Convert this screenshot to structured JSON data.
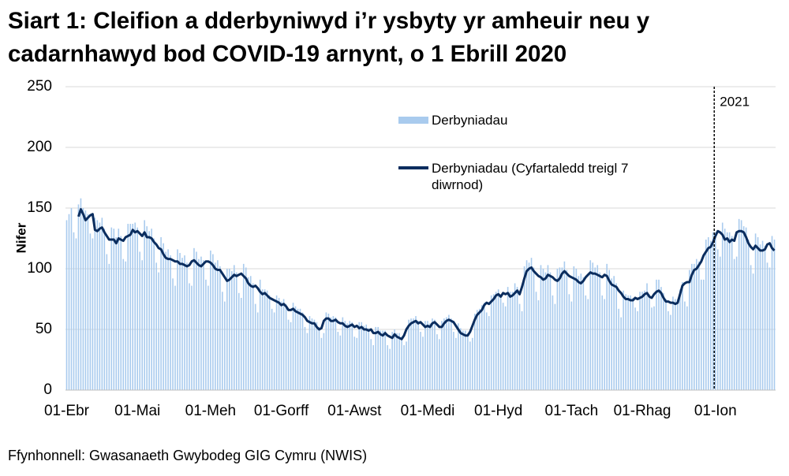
{
  "chart_data": {
    "type": "bar",
    "title": "Siart 1: Cleifion a dderbyniwyd i’r ysbyty yr amheuir neu y cadarnhawyd bod COVID-19 arnynt, o 1 Ebrill 2020",
    "y_label": "Nifer",
    "source": "Ffynhonnell: Gwasanaeth Gwybodeg GIG Cymru (NWIS)",
    "ylim": [
      0,
      250
    ],
    "yticks": [
      0,
      50,
      100,
      150,
      200,
      250
    ],
    "grid": true,
    "legend": "top",
    "annotation": {
      "text": "2021",
      "at": "01-Ion"
    },
    "categories": [
      "01-Ebr",
      null,
      null,
      null,
      null,
      null,
      null,
      null,
      null,
      null,
      null,
      null,
      null,
      null,
      null,
      null,
      null,
      null,
      null,
      null,
      null,
      null,
      null,
      null,
      null,
      null,
      null,
      null,
      null,
      null,
      "01-Mai",
      null,
      null,
      null,
      null,
      null,
      null,
      null,
      null,
      null,
      null,
      null,
      null,
      null,
      null,
      null,
      null,
      null,
      null,
      null,
      null,
      null,
      null,
      null,
      null,
      null,
      null,
      null,
      null,
      null,
      null,
      "01-Meh",
      null,
      null,
      null,
      null,
      null,
      null,
      null,
      null,
      null,
      null,
      null,
      null,
      null,
      null,
      null,
      null,
      null,
      null,
      null,
      null,
      null,
      null,
      null,
      null,
      null,
      null,
      null,
      null,
      null,
      "01-Gorff",
      null,
      null,
      null,
      null,
      null,
      null,
      null,
      null,
      null,
      null,
      null,
      null,
      null,
      null,
      null,
      null,
      null,
      null,
      null,
      null,
      null,
      null,
      null,
      null,
      null,
      null,
      null,
      null,
      null,
      null,
      "01-Awst",
      null,
      null,
      null,
      null,
      null,
      null,
      null,
      null,
      null,
      null,
      null,
      null,
      null,
      null,
      null,
      null,
      null,
      null,
      null,
      null,
      null,
      null,
      null,
      null,
      null,
      null,
      null,
      null,
      null,
      null,
      "01-Medi",
      null,
      null,
      null,
      null,
      null,
      null,
      null,
      null,
      null,
      null,
      null,
      null,
      null,
      null,
      null,
      null,
      null,
      null,
      null,
      null,
      null,
      null,
      null,
      null,
      null,
      null,
      null,
      null,
      null,
      "01-Hyd",
      null,
      null,
      null,
      null,
      null,
      null,
      null,
      null,
      null,
      null,
      null,
      null,
      null,
      null,
      null,
      null,
      null,
      null,
      null,
      null,
      null,
      null,
      null,
      null,
      null,
      null,
      null,
      null,
      null,
      null,
      "01-Tach",
      null,
      null,
      null,
      null,
      null,
      null,
      null,
      null,
      null,
      null,
      null,
      null,
      null,
      null,
      null,
      null,
      null,
      null,
      null,
      null,
      null,
      null,
      null,
      null,
      null,
      null,
      null,
      null,
      null,
      "01-Rhag",
      null,
      null,
      null,
      null,
      null,
      null,
      null,
      null,
      null,
      null,
      null,
      null,
      null,
      null,
      null,
      null,
      null,
      null,
      null,
      null,
      null,
      null,
      null,
      null,
      null,
      null,
      null,
      null,
      null,
      null,
      "01-Ion",
      null,
      null,
      null,
      null,
      null,
      null,
      null,
      null,
      null,
      null,
      null,
      null,
      null,
      null,
      null,
      null,
      null,
      null,
      null,
      null,
      null,
      null,
      null,
      null,
      null
    ],
    "series": [
      {
        "name": "Derbyniadau",
        "type": "bar",
        "color": "#a9cbee",
        "values": [
          140,
          145,
          150,
          130,
          125,
          153,
          158,
          150,
          148,
          145,
          129,
          125,
          142,
          140,
          138,
          142,
          133,
          112,
          104,
          134,
          133,
          126,
          133,
          127,
          108,
          106,
          137,
          137,
          137,
          138,
          134,
          114,
          107,
          140,
          135,
          131,
          133,
          125,
          105,
          97,
          126,
          121,
          114,
          116,
          111,
          92,
          86,
          116,
          113,
          109,
          111,
          105,
          88,
          86,
          117,
          114,
          108,
          110,
          107,
          91,
          86,
          115,
          112,
          105,
          107,
          102,
          81,
          73,
          100,
          100,
          98,
          103,
          97,
          80,
          76,
          104,
          101,
          93,
          94,
          88,
          71,
          64,
          91,
          83,
          83,
          82,
          78,
          67,
          64,
          78,
          76,
          73,
          75,
          71,
          58,
          56,
          72,
          69,
          67,
          67,
          64,
          52,
          47,
          61,
          59,
          58,
          56,
          52,
          43,
          47,
          64,
          63,
          60,
          61,
          60,
          48,
          45,
          60,
          57,
          55,
          57,
          56,
          44,
          43,
          56,
          56,
          53,
          54,
          51,
          42,
          37,
          52,
          52,
          49,
          49,
          49,
          37,
          34,
          48,
          50,
          47,
          47,
          44,
          37,
          40,
          58,
          59,
          59,
          61,
          57,
          48,
          44,
          57,
          57,
          55,
          59,
          58,
          46,
          42,
          57,
          59,
          60,
          62,
          59,
          48,
          43,
          55,
          51,
          49,
          49,
          47,
          40,
          43,
          63,
          66,
          67,
          70,
          72,
          64,
          61,
          78,
          79,
          81,
          83,
          79,
          72,
          69,
          85,
          81,
          81,
          88,
          85,
          71,
          65,
          102,
          107,
          105,
          109,
          101,
          81,
          74,
          103,
          100,
          97,
          103,
          97,
          78,
          71,
          100,
          101,
          101,
          106,
          99,
          79,
          73,
          102,
          100,
          94,
          96,
          93,
          78,
          75,
          107,
          105,
          101,
          103,
          97,
          78,
          75,
          104,
          99,
          92,
          94,
          88,
          67,
          60,
          82,
          79,
          78,
          78,
          76,
          68,
          65,
          81,
          81,
          82,
          88,
          79,
          68,
          69,
          91,
          91,
          85,
          80,
          75,
          65,
          62,
          77,
          75,
          75,
          83,
          89,
          73,
          69,
          99,
          104,
          104,
          108,
          106,
          91,
          91,
          124,
          126,
          123,
          130,
          130,
          116,
          110,
          138,
          133,
          130,
          130,
          127,
          108,
          110,
          141,
          140,
          135,
          134,
          124,
          103,
          96,
          129,
          126,
          120,
          123,
          119,
          105,
          101,
          127,
          124
        ]
      },
      {
        "name": "Derbyniadau  (Cyfartaledd treigl 7 diwrnod)",
        "type": "line",
        "color": "#0b2d5e",
        "values": [
          null,
          null,
          null,
          null,
          null,
          143,
          149,
          145,
          140,
          142,
          144,
          145,
          132,
          131,
          133,
          134,
          130,
          127,
          124,
          124,
          124,
          121,
          125,
          124,
          123,
          126,
          127,
          128,
          132,
          130,
          131,
          129,
          127,
          130,
          126,
          126,
          125,
          122,
          120,
          117,
          116,
          112,
          109,
          108,
          108,
          107,
          106,
          106,
          104,
          104,
          103,
          102,
          103,
          106,
          107,
          105,
          103,
          102,
          104,
          106,
          106,
          105,
          103,
          100,
          99,
          99,
          96,
          93,
          90,
          91,
          93,
          95,
          94,
          95,
          96,
          94,
          92,
          88,
          86,
          85,
          86,
          84,
          81,
          79,
          80,
          78,
          76,
          75,
          74,
          73,
          72,
          70,
          71,
          69,
          66,
          66,
          67,
          65,
          64,
          63,
          62,
          60,
          57,
          56,
          55,
          55,
          52,
          50,
          51,
          57,
          59,
          59,
          57,
          57,
          58,
          56,
          55,
          55,
          53,
          52,
          53,
          54,
          52,
          53,
          51,
          52,
          50,
          50,
          49,
          50,
          47,
          47,
          48,
          46,
          45,
          47,
          45,
          44,
          43,
          46,
          44,
          43,
          42,
          45,
          50,
          53,
          55,
          56,
          57,
          55,
          56,
          54,
          52,
          53,
          52,
          55,
          56,
          54,
          52,
          52,
          55,
          57,
          58,
          57,
          56,
          53,
          50,
          47,
          46,
          45,
          45,
          48,
          53,
          58,
          62,
          64,
          66,
          70,
          72,
          71,
          73,
          75,
          78,
          79,
          77,
          80,
          79,
          80,
          77,
          78,
          80,
          82,
          79,
          85,
          92,
          98,
          100,
          101,
          98,
          96,
          94,
          93,
          91,
          92,
          95,
          94,
          93,
          91,
          90,
          92,
          96,
          98,
          96,
          94,
          93,
          92,
          91,
          89,
          88,
          90,
          93,
          95,
          97,
          96,
          96,
          95,
          94,
          93,
          95,
          94,
          90,
          87,
          86,
          85,
          82,
          80,
          77,
          75,
          75,
          74,
          74,
          76,
          75,
          76,
          77,
          79,
          80,
          77,
          76,
          79,
          81,
          82,
          80,
          76,
          73,
          73,
          72,
          72,
          71,
          72,
          79,
          86,
          88,
          89,
          89,
          95,
          99,
          100,
          103,
          106,
          111,
          114,
          117,
          118,
          122,
          127,
          131,
          130,
          128,
          124,
          125,
          122,
          124,
          123,
          130,
          131,
          131,
          130,
          126,
          121,
          118,
          116,
          119,
          117,
          115,
          115,
          116,
          120,
          121,
          117,
          115
        ]
      }
    ]
  }
}
